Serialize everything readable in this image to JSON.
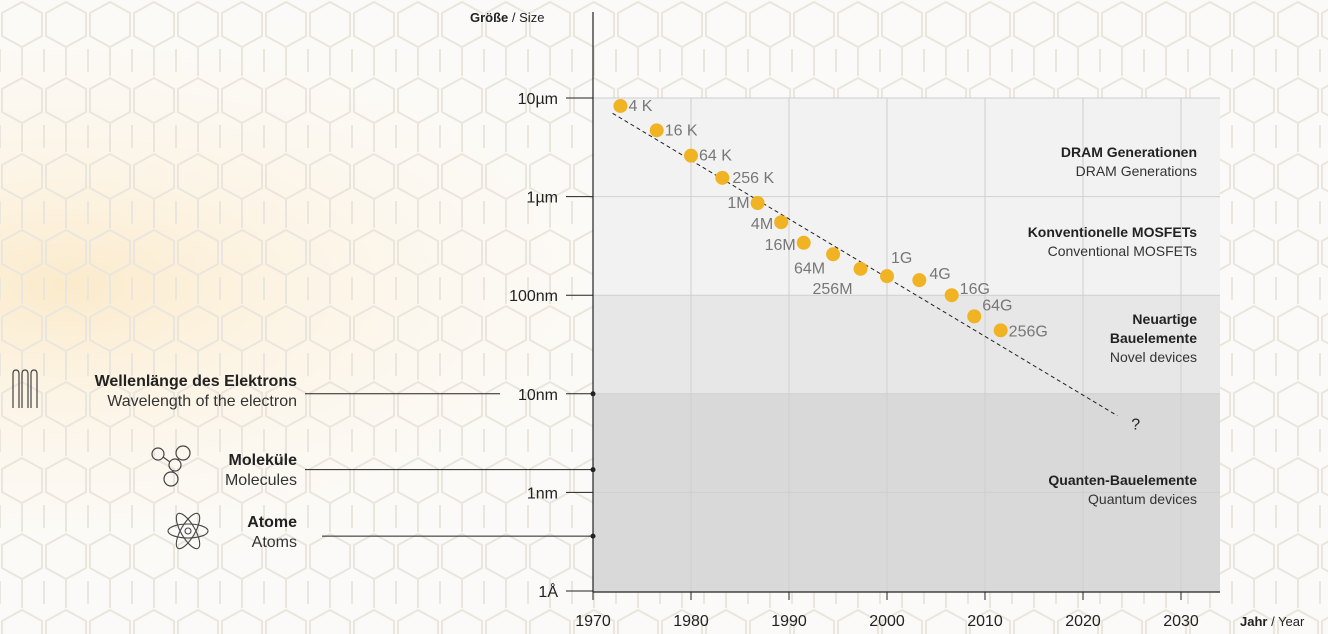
{
  "axis_titles": {
    "y_bold": "Größe",
    "y_rest": " / Size",
    "x_bold": "Jahr",
    "x_rest": " / Year"
  },
  "zones": [
    {
      "de": "DRAM Generationen",
      "en": "DRAM Generations"
    },
    {
      "de": "Konventionelle MOSFETs",
      "en": "Conventional MOSFETs"
    },
    {
      "de": "Neuartige Bauelemente",
      "de_lines": [
        "Neuartige",
        "Bauelemente"
      ],
      "en": "Novel devices"
    },
    {
      "de": "Quanten-Bauelemente",
      "en": "Quantum devices"
    }
  ],
  "legend": [
    {
      "de": "Wellenlänge des Elektrons",
      "en": "Wavelength of the electron",
      "icon": "wave-icon"
    },
    {
      "de": "Moleküle",
      "en": "Molecules",
      "icon": "molecule-icon"
    },
    {
      "de": "Atome",
      "en": "Atoms",
      "icon": "atom-icon"
    }
  ],
  "colors": {
    "point": "#f0b323",
    "label": "#777777",
    "zone_light": "#f2f2f2",
    "zone_mid": "#e7e7e7",
    "zone_dark": "#d9d9d9"
  },
  "chart_data": {
    "type": "scatter",
    "x_axis": {
      "ticks": [
        1970,
        1980,
        1990,
        2000,
        2010,
        2020,
        2030
      ],
      "range": [
        1970,
        2033
      ]
    },
    "y_axis": {
      "scale": "log",
      "unit": "m",
      "ticks": [
        {
          "label": "10µm",
          "value": 1e-05
        },
        {
          "label": "1µm",
          "value": 1e-06
        },
        {
          "label": "100nm",
          "value": 1e-07
        },
        {
          "label": "10nm",
          "value": 1e-08
        },
        {
          "label": "1nm",
          "value": 1e-09
        },
        {
          "label": "1Å",
          "value": 1e-10
        }
      ]
    },
    "series": [
      {
        "points": [
          {
            "label": "4 K",
            "x": 1972.8,
            "y": 8.3e-06
          },
          {
            "label": "16 K",
            "x": 1976.5,
            "y": 4.7e-06
          },
          {
            "label": "64 K",
            "x": 1980.0,
            "y": 2.6e-06
          },
          {
            "label": "256 K",
            "x": 1983.2,
            "y": 1.55e-06
          },
          {
            "label": "1M",
            "x": 1986.8,
            "y": 8.6e-07
          },
          {
            "label": "4M",
            "x": 1989.2,
            "y": 5.5e-07
          },
          {
            "label": "16M",
            "x": 1991.5,
            "y": 3.4e-07
          },
          {
            "label": "64M",
            "x": 1994.5,
            "y": 2.6e-07
          },
          {
            "label": "256M",
            "x": 1997.3,
            "y": 1.85e-07
          },
          {
            "label": "1G",
            "x": 2000.0,
            "y": 1.56e-07
          },
          {
            "label": "4G",
            "x": 2003.3,
            "y": 1.42e-07
          },
          {
            "label": "16G",
            "x": 2006.6,
            "y": 1e-07
          },
          {
            "label": "64G",
            "x": 2008.9,
            "y": 6.1e-08
          },
          {
            "label": "256G",
            "x": 2011.6,
            "y": 4.4e-08
          }
        ]
      }
    ],
    "trend_line": {
      "from": {
        "x": 1972.0,
        "y": 7e-06
      },
      "to": {
        "x": 2023.5,
        "y": 6e-09
      },
      "end_label": "?"
    },
    "zones": [
      {
        "y_from": 1e-07,
        "y_to": 1e-05
      },
      {
        "y_from": 1e-08,
        "y_to": 1e-07
      },
      {
        "y_from": 1e-10,
        "y_to": 1e-08
      }
    ],
    "reference_lines": [
      {
        "legend_index": 0,
        "y": 1e-08
      },
      {
        "legend_index": 1,
        "y": 1.7e-09
      },
      {
        "legend_index": 2,
        "y": 3.6e-10
      }
    ]
  }
}
